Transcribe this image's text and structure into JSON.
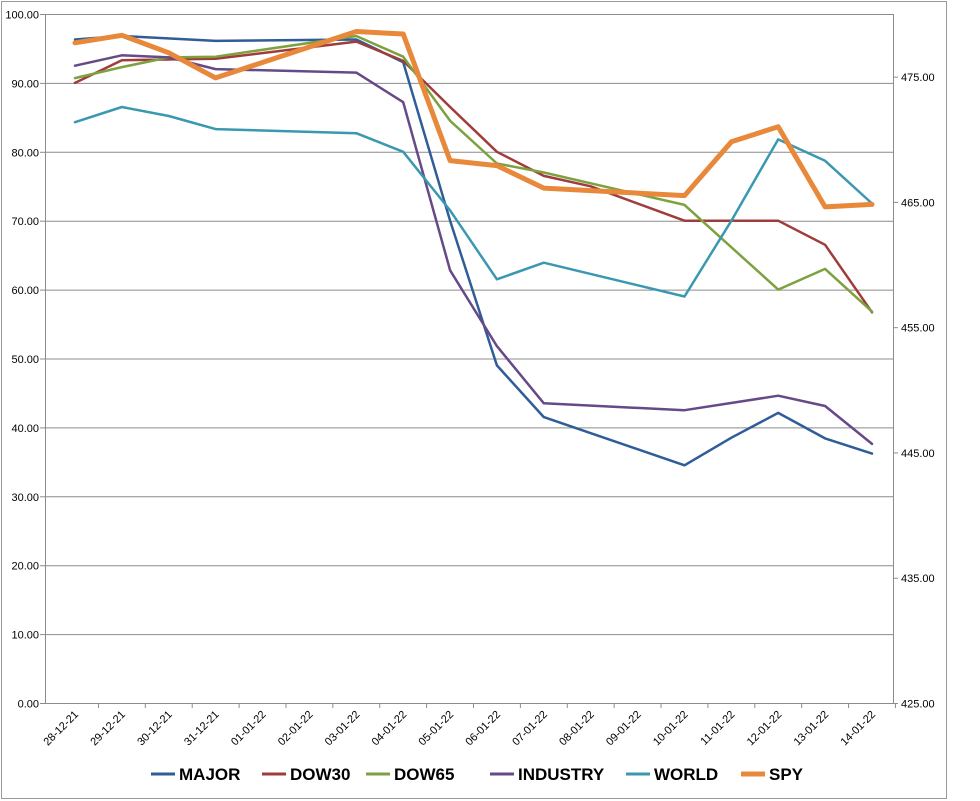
{
  "chart_data": {
    "type": "line",
    "categories": [
      "28-12-21",
      "29-12-21",
      "30-12-21",
      "31-12-21",
      "01-01-22",
      "02-01-22",
      "03-01-22",
      "04-01-22",
      "05-01-22",
      "06-01-22",
      "07-01-22",
      "08-01-22",
      "09-01-22",
      "10-01-22",
      "11-01-22",
      "12-01-22",
      "13-01-22",
      "14-01-22"
    ],
    "y_left": {
      "ylim": [
        0,
        100
      ],
      "ticks": [
        "0.00",
        "10.00",
        "20.00",
        "30.00",
        "40.00",
        "50.00",
        "60.00",
        "70.00",
        "80.00",
        "90.00",
        "100.00"
      ]
    },
    "y_right": {
      "ylim": [
        425,
        480
      ],
      "ticks": [
        "425.00",
        "435.00",
        "445.00",
        "455.00",
        "465.00",
        "475.00"
      ]
    },
    "grid": true,
    "legend_position": "bottom",
    "series": [
      {
        "name": "MAJOR",
        "color": "#2f5d97",
        "axis": "left",
        "points": [
          [
            0,
            96.3
          ],
          [
            1,
            96.8
          ],
          [
            3,
            96.1
          ],
          [
            6,
            96.3
          ],
          [
            7,
            93.0
          ],
          [
            8,
            70.0
          ],
          [
            9,
            49.0
          ],
          [
            10,
            41.5
          ],
          [
            13,
            34.5
          ],
          [
            14,
            38.5
          ],
          [
            15,
            42.1
          ],
          [
            16,
            38.4
          ],
          [
            17,
            36.2
          ]
        ]
      },
      {
        "name": "DOW30",
        "color": "#a03c3a",
        "axis": "left",
        "points": [
          [
            0,
            90.0
          ],
          [
            1,
            93.3
          ],
          [
            3,
            93.5
          ],
          [
            6,
            96.0
          ],
          [
            7,
            93.2
          ],
          [
            8,
            86.5
          ],
          [
            9,
            80.0
          ],
          [
            10,
            76.5
          ],
          [
            11,
            75.0
          ],
          [
            13,
            70.0
          ],
          [
            14,
            70.0
          ],
          [
            15,
            70.0
          ],
          [
            16,
            66.5
          ],
          [
            17,
            56.7
          ]
        ]
      },
      {
        "name": "DOW65",
        "color": "#7ea13f",
        "axis": "left",
        "points": [
          [
            0,
            90.7
          ],
          [
            1,
            92.3
          ],
          [
            2,
            93.7
          ],
          [
            3,
            93.8
          ],
          [
            6,
            96.8
          ],
          [
            7,
            93.8
          ],
          [
            8,
            84.5
          ],
          [
            9,
            78.3
          ],
          [
            10,
            77.0
          ],
          [
            13,
            72.3
          ],
          [
            15,
            60.0
          ],
          [
            16,
            63.0
          ],
          [
            17,
            56.8
          ]
        ]
      },
      {
        "name": "INDUSTRY",
        "color": "#664a88",
        "axis": "left",
        "points": [
          [
            0,
            92.5
          ],
          [
            1,
            94.0
          ],
          [
            2,
            93.7
          ],
          [
            3,
            92.0
          ],
          [
            6,
            91.5
          ],
          [
            7,
            87.2
          ],
          [
            8,
            62.8
          ],
          [
            9,
            51.8
          ],
          [
            10,
            43.5
          ],
          [
            13,
            42.5
          ],
          [
            15,
            44.6
          ],
          [
            16,
            43.1
          ],
          [
            17,
            37.6
          ]
        ]
      },
      {
        "name": "WORLD",
        "color": "#3a98b0",
        "axis": "left",
        "points": [
          [
            0,
            84.3
          ],
          [
            1,
            86.5
          ],
          [
            2,
            85.2
          ],
          [
            3,
            83.3
          ],
          [
            6,
            82.7
          ],
          [
            7,
            80.0
          ],
          [
            8,
            71.5
          ],
          [
            9,
            61.5
          ],
          [
            10,
            63.9
          ],
          [
            13,
            59.0
          ],
          [
            14,
            70.0
          ],
          [
            15,
            81.8
          ],
          [
            16,
            78.7
          ],
          [
            17,
            72.5
          ]
        ]
      },
      {
        "name": "SPY",
        "color": "#e8883a",
        "axis": "right",
        "points": [
          [
            0,
            477.7
          ],
          [
            1,
            478.3
          ],
          [
            2,
            476.9
          ],
          [
            3,
            474.9
          ],
          [
            6,
            478.6
          ],
          [
            7,
            478.4
          ],
          [
            8,
            468.3
          ],
          [
            9,
            467.9
          ],
          [
            10,
            466.1
          ],
          [
            13,
            465.5
          ],
          [
            14,
            469.8
          ],
          [
            15,
            471.0
          ],
          [
            16,
            464.6
          ],
          [
            17,
            464.8
          ]
        ]
      }
    ]
  }
}
